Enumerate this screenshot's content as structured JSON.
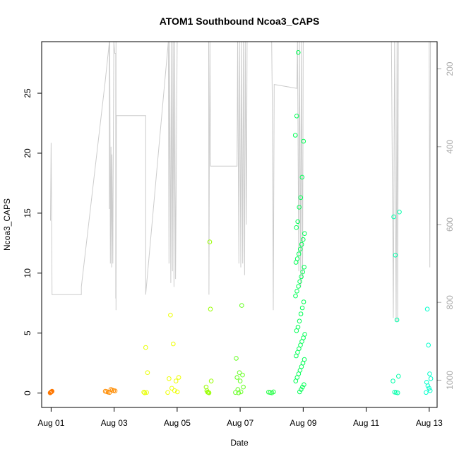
{
  "chart_data": {
    "type": "scatter",
    "title": "ATOM1 Southbound Ncoa3_CAPS",
    "xlabel": "Date",
    "ylabel": "Ncoa3_CAPS",
    "x_tick_labels": [
      "Aug 01",
      "Aug 03",
      "Aug 05",
      "Aug 07",
      "Aug 09",
      "Aug 11",
      "Aug 13"
    ],
    "x_tick_values": [
      0,
      2,
      4,
      6,
      8,
      10,
      12
    ],
    "xlim": [
      -0.3,
      12.25
    ],
    "ylim": [
      -1.2,
      29.3
    ],
    "y_ticks": [
      0,
      5,
      10,
      15,
      20,
      25
    ],
    "y2_ticks": [
      200,
      400,
      600,
      800,
      1000
    ],
    "y2lim": [
      1070,
      130
    ],
    "grid": false,
    "line_color": "#cccccc",
    "depth_trace": [
      [
        -0.02,
        590
      ],
      [
        0.0,
        390
      ],
      [
        0.03,
        780
      ],
      [
        0.96,
        780
      ],
      [
        0.96,
        760
      ],
      [
        1.72,
        230
      ],
      [
        1.85,
        100
      ],
      [
        1.85,
        560
      ],
      [
        1.86,
        100
      ],
      [
        1.88,
        700
      ],
      [
        1.9,
        400
      ],
      [
        1.92,
        710
      ],
      [
        1.93,
        420
      ],
      [
        1.96,
        700
      ],
      [
        1.97,
        460
      ],
      [
        1.99,
        100
      ],
      [
        2.02,
        160
      ],
      [
        2.05,
        160
      ],
      [
        2.05,
        790
      ],
      [
        2.06,
        100
      ],
      [
        2.06,
        820
      ],
      [
        2.07,
        320
      ],
      [
        3.0,
        320
      ],
      [
        3.0,
        780
      ],
      [
        3.72,
        120
      ],
      [
        3.74,
        700
      ],
      [
        3.76,
        100
      ],
      [
        3.8,
        750
      ],
      [
        3.82,
        100
      ],
      [
        3.85,
        720
      ],
      [
        3.87,
        100
      ],
      [
        3.9,
        760
      ],
      [
        3.92,
        100
      ],
      [
        3.95,
        740
      ],
      [
        4.0,
        100
      ],
      [
        4.4,
        100
      ],
      [
        5.0,
        100
      ],
      [
        5.01,
        780
      ],
      [
        5.02,
        450
      ],
      [
        5.04,
        100
      ],
      [
        5.06,
        450
      ],
      [
        5.9,
        450
      ],
      [
        5.92,
        100
      ],
      [
        5.96,
        700
      ],
      [
        5.98,
        100
      ],
      [
        6.02,
        710
      ],
      [
        6.04,
        100
      ],
      [
        6.08,
        700
      ],
      [
        6.1,
        100
      ],
      [
        6.14,
        730
      ],
      [
        6.16,
        100
      ],
      [
        6.2,
        600
      ],
      [
        6.22,
        100
      ],
      [
        7.0,
        100
      ],
      [
        7.02,
        280
      ],
      [
        7.05,
        820
      ],
      [
        7.08,
        240
      ],
      [
        7.8,
        250
      ],
      [
        7.82,
        100
      ],
      [
        7.86,
        720
      ],
      [
        7.88,
        100
      ],
      [
        7.92,
        760
      ],
      [
        7.94,
        100
      ],
      [
        7.98,
        740
      ],
      [
        8.0,
        100
      ],
      [
        10.8,
        100
      ],
      [
        10.86,
        840
      ],
      [
        10.9,
        100
      ],
      [
        10.95,
        850
      ],
      [
        10.98,
        100
      ],
      [
        11.0,
        850
      ],
      [
        11.02,
        100
      ],
      [
        12.0,
        100
      ],
      [
        12.02,
        710
      ],
      [
        12.04,
        100
      ]
    ],
    "series": [
      {
        "color": "#ff7700",
        "x_range": [
          -0.03,
          0.03
        ],
        "y_values": [
          0.02,
          0.05,
          0.08,
          0.1,
          0.12,
          0.15
        ]
      },
      {
        "color": "#ff8c00",
        "x_range": [
          1.72,
          2.03
        ],
        "y_values": [
          0.05,
          0.08,
          0.12,
          0.15,
          0.18,
          0.2,
          0.25,
          0.3
        ]
      },
      {
        "color": "#e8ff00",
        "x_range": [
          2.94,
          3.06
        ],
        "y_values": [
          0.02,
          0.05,
          0.08,
          3.8,
          1.7
        ]
      },
      {
        "color": "#eeff00",
        "x_range": [
          3.7,
          4.05
        ],
        "y_values": [
          0.05,
          0.1,
          0.2,
          0.4,
          1.2,
          1.3,
          1.0,
          4.1,
          6.5
        ]
      },
      {
        "color": "#99ff00",
        "x_range": [
          4.92,
          5.08
        ],
        "y_values": [
          0.02,
          0.05,
          0.08,
          0.2,
          0.5,
          1.0,
          7.0,
          12.6
        ]
      },
      {
        "color": "#66ff22",
        "x_range": [
          5.85,
          6.1
        ],
        "y_values": [
          0.02,
          0.05,
          0.1,
          0.3,
          0.5,
          1.0,
          1.3,
          1.5,
          1.7,
          2.9,
          7.3
        ]
      },
      {
        "color": "#22ff44",
        "x_range": [
          6.9,
          7.06
        ],
        "y_values": [
          0.02,
          0.05,
          0.08,
          0.1
        ]
      },
      {
        "color": "#00ff55",
        "x_range": [
          7.75,
          8.05
        ],
        "y_values": [
          0.1,
          0.3,
          0.5,
          0.7,
          1.0,
          1.3,
          1.6,
          1.9,
          2.2,
          2.5,
          2.8,
          3.1,
          3.4,
          3.7,
          4.0,
          4.3,
          4.6,
          4.9,
          5.2,
          5.5,
          6.0,
          6.6,
          7.1,
          7.6,
          8.1,
          8.5,
          8.9,
          9.3,
          9.7,
          10.1,
          10.5,
          10.9,
          11.2,
          11.6,
          12.0,
          12.4,
          12.8,
          13.3,
          13.8,
          14.3,
          15.5,
          16.3,
          18.0,
          21.0,
          21.5,
          23.1,
          28.4
        ]
      },
      {
        "color": "#00ffaa",
        "x_range": [
          10.85,
          11.05
        ],
        "y_values": [
          0.02,
          0.05,
          0.08,
          1.0,
          1.4,
          6.1,
          11.5,
          14.7,
          15.1
        ]
      },
      {
        "color": "#00ffcc",
        "x_range": [
          11.9,
          12.05
        ],
        "y_values": [
          0.05,
          0.2,
          0.4,
          0.6,
          0.9,
          1.2,
          1.6,
          4.0,
          7.0
        ]
      }
    ]
  }
}
